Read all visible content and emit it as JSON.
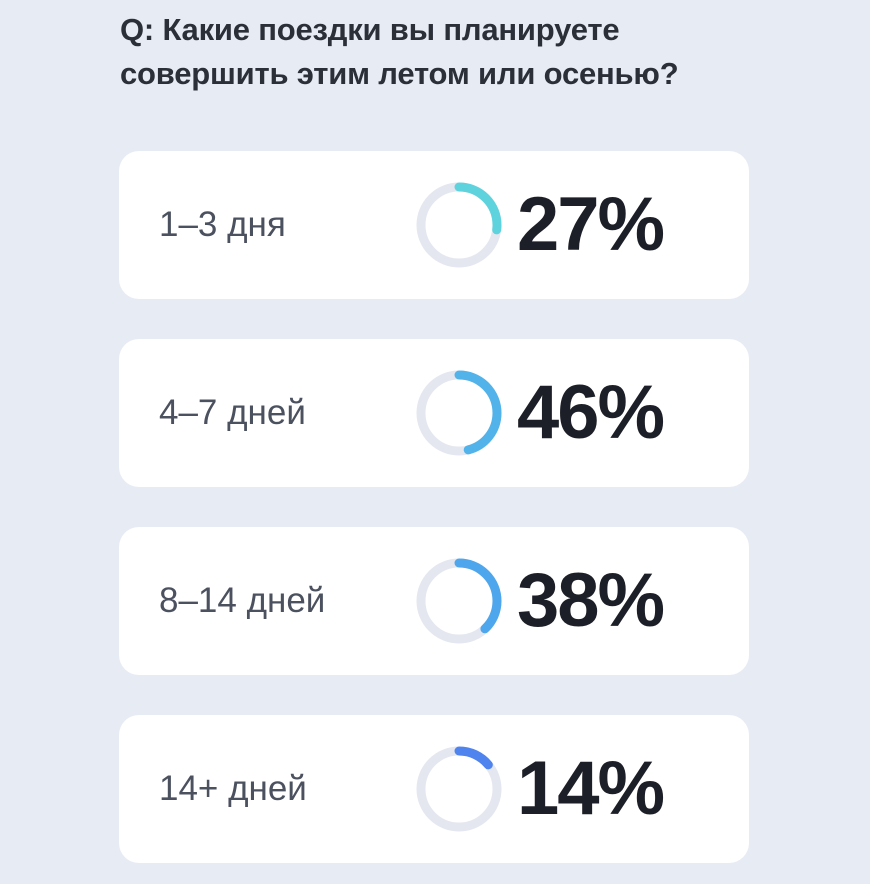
{
  "question": "Q: Какие поездки вы планируете совершить этим летом или осенью?",
  "chart_data": {
    "type": "pie",
    "title": "Q: Какие поездки вы планируете совершить этим летом или осенью?",
    "categories": [
      "1–3 дня",
      "4–7 дней",
      "8–14 дней",
      "14+ дней"
    ],
    "values": [
      27,
      46,
      38,
      14
    ],
    "value_labels": [
      "27%",
      "46%",
      "38%",
      "14%"
    ],
    "colors": [
      "#5fd3dd",
      "#52b3ea",
      "#4ea6ec",
      "#4f84ee"
    ],
    "track_color": "#e4e7ef"
  }
}
